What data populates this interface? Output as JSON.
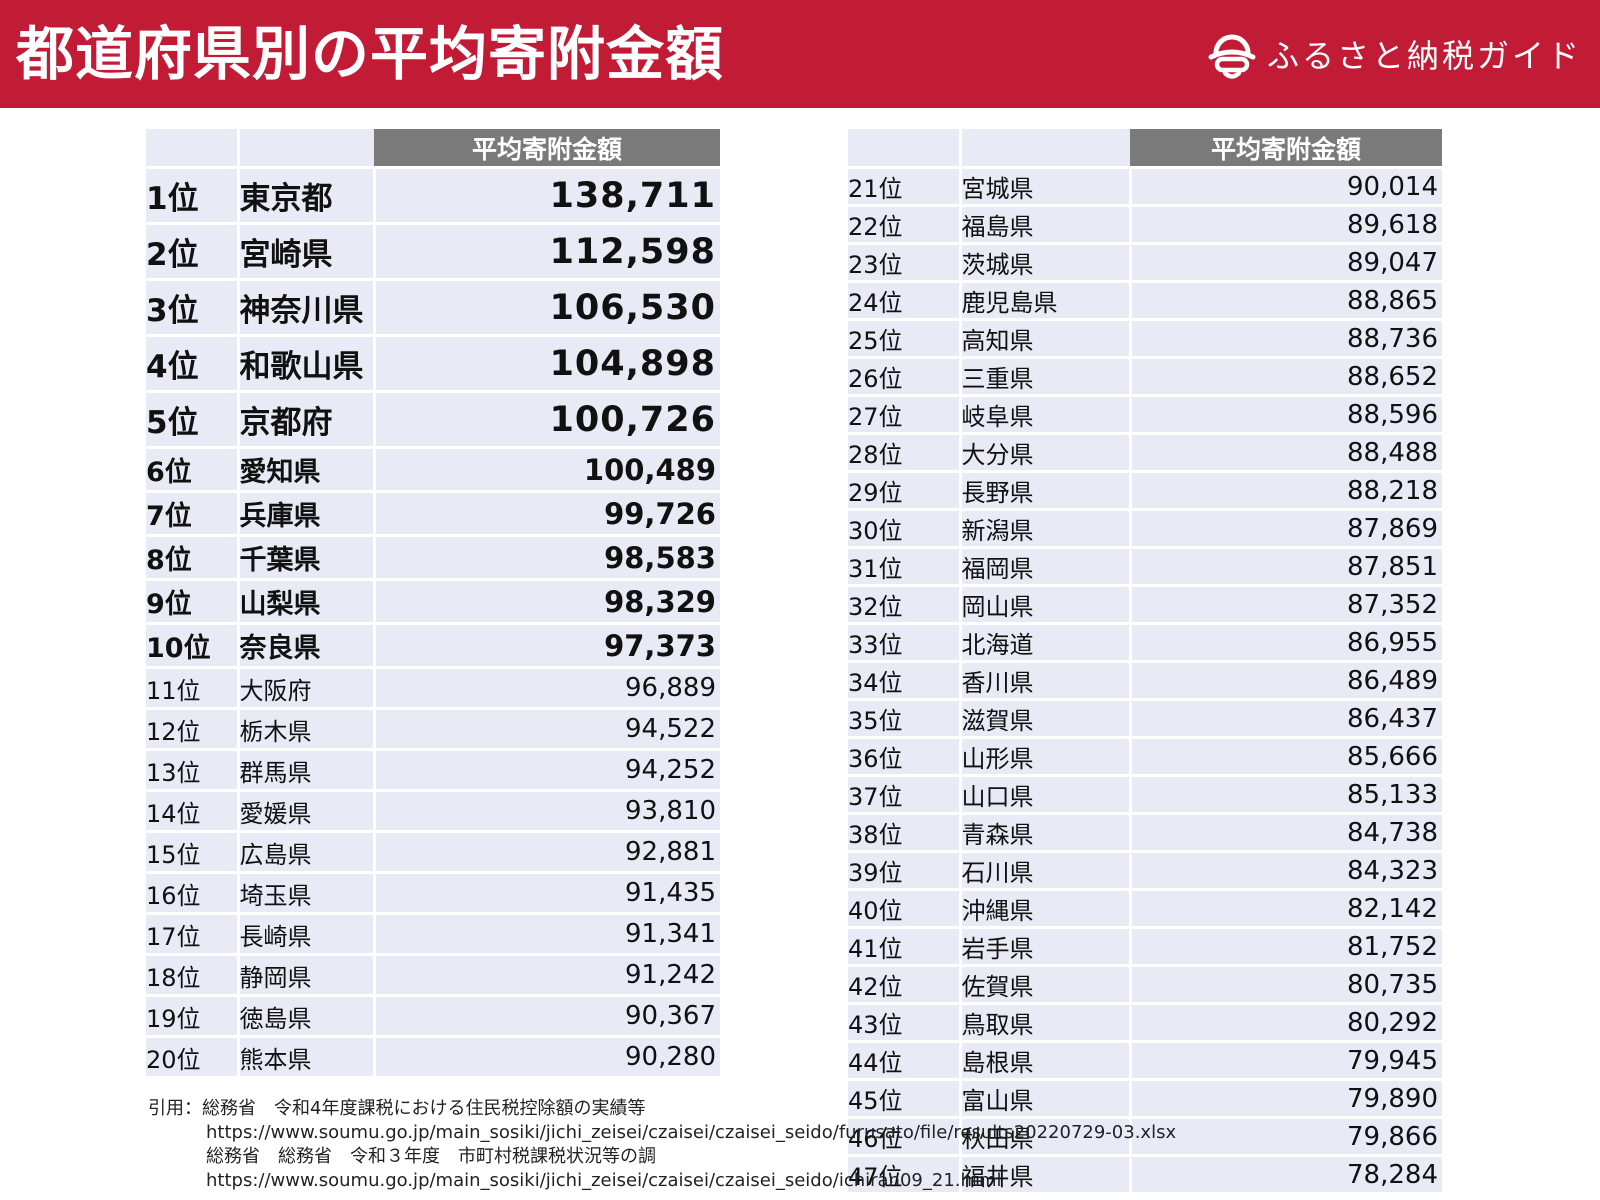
{
  "header": {
    "title": "都道府県別の平均寄附金額",
    "brand": "ふるさと納税ガイド",
    "brand_icon": "furusato-logo-icon",
    "background_color": "#c11b36"
  },
  "table_header": "平均寄附金額",
  "left_table": {
    "rows": [
      {
        "rank": "1位",
        "pref": "東京都",
        "amount": "138,711"
      },
      {
        "rank": "2位",
        "pref": "宮崎県",
        "amount": "112,598"
      },
      {
        "rank": "3位",
        "pref": "神奈川県",
        "amount": "106,530"
      },
      {
        "rank": "4位",
        "pref": "和歌山県",
        "amount": "104,898"
      },
      {
        "rank": "5位",
        "pref": "京都府",
        "amount": "100,726"
      },
      {
        "rank": "6位",
        "pref": "愛知県",
        "amount": "100,489"
      },
      {
        "rank": "7位",
        "pref": "兵庫県",
        "amount": "99,726"
      },
      {
        "rank": "8位",
        "pref": "千葉県",
        "amount": "98,583"
      },
      {
        "rank": "9位",
        "pref": "山梨県",
        "amount": "98,329"
      },
      {
        "rank": "10位",
        "pref": "奈良県",
        "amount": "97,373"
      },
      {
        "rank": "11位",
        "pref": "大阪府",
        "amount": "96,889"
      },
      {
        "rank": "12位",
        "pref": "栃木県",
        "amount": "94,522"
      },
      {
        "rank": "13位",
        "pref": "群馬県",
        "amount": "94,252"
      },
      {
        "rank": "14位",
        "pref": "愛媛県",
        "amount": "93,810"
      },
      {
        "rank": "15位",
        "pref": "広島県",
        "amount": "92,881"
      },
      {
        "rank": "16位",
        "pref": "埼玉県",
        "amount": "91,435"
      },
      {
        "rank": "17位",
        "pref": "長崎県",
        "amount": "91,341"
      },
      {
        "rank": "18位",
        "pref": "静岡県",
        "amount": "91,242"
      },
      {
        "rank": "19位",
        "pref": "徳島県",
        "amount": "90,367"
      },
      {
        "rank": "20位",
        "pref": "熊本県",
        "amount": "90,280"
      }
    ]
  },
  "right_table": {
    "rows": [
      {
        "rank": "21位",
        "pref": "宮城県",
        "amount": "90,014"
      },
      {
        "rank": "22位",
        "pref": "福島県",
        "amount": "89,618"
      },
      {
        "rank": "23位",
        "pref": "茨城県",
        "amount": "89,047"
      },
      {
        "rank": "24位",
        "pref": "鹿児島県",
        "amount": "88,865"
      },
      {
        "rank": "25位",
        "pref": "高知県",
        "amount": "88,736"
      },
      {
        "rank": "26位",
        "pref": "三重県",
        "amount": "88,652"
      },
      {
        "rank": "27位",
        "pref": "岐阜県",
        "amount": "88,596"
      },
      {
        "rank": "28位",
        "pref": "大分県",
        "amount": "88,488"
      },
      {
        "rank": "29位",
        "pref": "長野県",
        "amount": "88,218"
      },
      {
        "rank": "30位",
        "pref": "新潟県",
        "amount": "87,869"
      },
      {
        "rank": "31位",
        "pref": "福岡県",
        "amount": "87,851"
      },
      {
        "rank": "32位",
        "pref": "岡山県",
        "amount": "87,352"
      },
      {
        "rank": "33位",
        "pref": "北海道",
        "amount": "86,955"
      },
      {
        "rank": "34位",
        "pref": "香川県",
        "amount": "86,489"
      },
      {
        "rank": "35位",
        "pref": "滋賀県",
        "amount": "86,437"
      },
      {
        "rank": "36位",
        "pref": "山形県",
        "amount": "85,666"
      },
      {
        "rank": "37位",
        "pref": "山口県",
        "amount": "85,133"
      },
      {
        "rank": "38位",
        "pref": "青森県",
        "amount": "84,738"
      },
      {
        "rank": "39位",
        "pref": "石川県",
        "amount": "84,323"
      },
      {
        "rank": "40位",
        "pref": "沖縄県",
        "amount": "82,142"
      },
      {
        "rank": "41位",
        "pref": "岩手県",
        "amount": "81,752"
      },
      {
        "rank": "42位",
        "pref": "佐賀県",
        "amount": "80,735"
      },
      {
        "rank": "43位",
        "pref": "鳥取県",
        "amount": "80,292"
      },
      {
        "rank": "44位",
        "pref": "島根県",
        "amount": "79,945"
      },
      {
        "rank": "45位",
        "pref": "富山県",
        "amount": "79,890"
      },
      {
        "rank": "46位",
        "pref": "秋田県",
        "amount": "79,866"
      },
      {
        "rank": "47位",
        "pref": "福井県",
        "amount": "78,284"
      }
    ]
  },
  "footer": {
    "line1": "引用：総務省　令和4年度課税における住民税控除額の実績等",
    "line2": "https://www.soumu.go.jp/main_sosiki/jichi_zeisei/czaisei/czaisei_seido/furusato/file/results20220729-03.xlsx",
    "line3": "総務省　総務省　令和３年度　市町村税課税状況等の調",
    "line4": "https://www.soumu.go.jp/main_sosiki/jichi_zeisei/czaisei/czaisei_seido/ichiran09_21.html"
  }
}
